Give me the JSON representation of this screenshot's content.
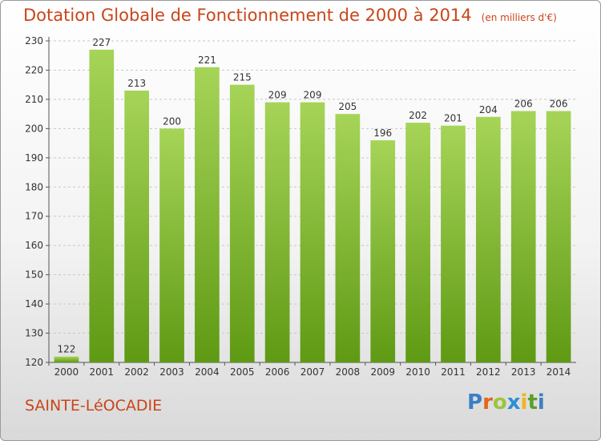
{
  "header": {
    "title": "Dotation Globale de Fonctionnement de 2000 à 2014",
    "subtitle": "(en milliers d'€)"
  },
  "footer": {
    "commune": "SAINTE-LéOCADIE",
    "logo": [
      "P",
      "r",
      "o",
      "x",
      "i",
      "t",
      "i"
    ],
    "logo_colors": [
      "#3a7fc4",
      "#e2661b",
      "#9bc53d",
      "#2e8fd1",
      "#f0b323",
      "#5aa02c",
      "#3a7fc4"
    ]
  },
  "colors": {
    "bar_top": "#a6d458",
    "bar_bottom": "#5f9a14",
    "grid": "#c8c8c8",
    "text": "#333333"
  },
  "chart_data": {
    "type": "bar",
    "categories": [
      "2000",
      "2001",
      "2002",
      "2003",
      "2004",
      "2005",
      "2006",
      "2007",
      "2008",
      "2009",
      "2010",
      "2011",
      "2012",
      "2013",
      "2014"
    ],
    "values": [
      122,
      227,
      213,
      200,
      221,
      215,
      209,
      209,
      205,
      196,
      202,
      201,
      204,
      206,
      206
    ],
    "title": "Dotation Globale de Fonctionnement de 2000 à 2014",
    "ylim": [
      120,
      230
    ],
    "yticks": [
      120,
      130,
      140,
      150,
      160,
      170,
      180,
      190,
      200,
      210,
      220,
      230
    ],
    "grid": true,
    "data_labels": true
  }
}
